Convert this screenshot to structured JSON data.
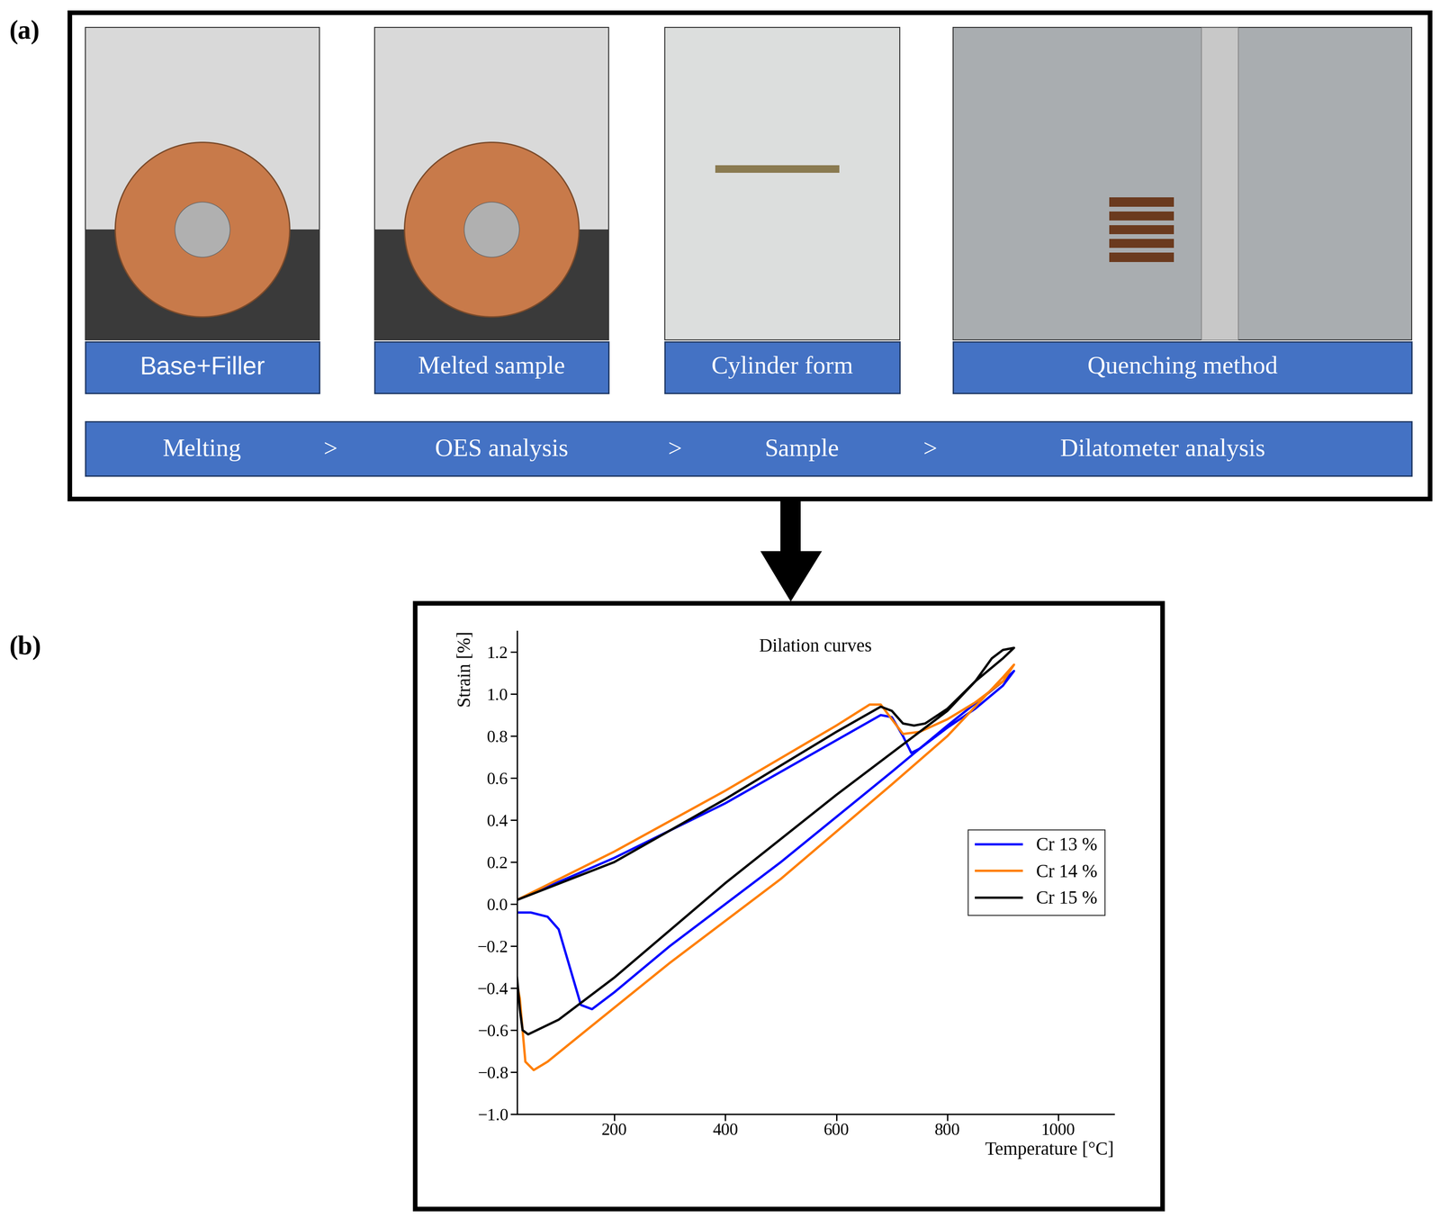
{
  "diagram": {
    "panel_a": {
      "label": "(a)",
      "photos": [
        {
          "caption": "Base+Filler"
        },
        {
          "caption": "Melted sample"
        },
        {
          "caption": "Cylinder form"
        },
        {
          "caption": "Quenching method"
        }
      ],
      "process_steps": [
        "Melting",
        "OES analysis",
        "Sample",
        "Dilatometer analysis"
      ],
      "separator": ">"
    },
    "panel_b": {
      "label": "(b)"
    }
  },
  "chart_data": {
    "type": "line",
    "title": "Dilation curves",
    "x_label": "Temperature [°C]",
    "y_label": "Strain [%]",
    "xlim": [
      25,
      1100
    ],
    "ylim": [
      -1.0,
      1.3
    ],
    "xticks": [
      200,
      400,
      600,
      800,
      1000
    ],
    "yticks": [
      {
        "value": -1.0,
        "label": "−1.0"
      },
      {
        "value": -0.8,
        "label": "−0.8"
      },
      {
        "value": -0.6,
        "label": "−0.6"
      },
      {
        "value": -0.4,
        "label": "−0.4"
      },
      {
        "value": -0.2,
        "label": "−0.2"
      },
      0.0,
      0.2,
      0.4,
      0.6,
      0.8,
      1.0,
      1.2
    ],
    "legend": "center right",
    "series": [
      {
        "name": "Cr 13 %",
        "color": "#0000ff",
        "x": [
          25,
          200,
          400,
          600,
          680,
          700,
          720,
          735,
          750,
          800,
          850,
          900,
          920,
          900,
          800,
          700,
          500,
          300,
          200,
          160,
          140,
          120,
          100,
          80,
          50,
          25
        ],
        "values": [
          0.02,
          0.22,
          0.48,
          0.78,
          0.9,
          0.89,
          0.8,
          0.72,
          0.74,
          0.84,
          0.93,
          1.04,
          1.11,
          1.06,
          0.85,
          0.63,
          0.2,
          -0.2,
          -0.42,
          -0.5,
          -0.48,
          -0.3,
          -0.12,
          -0.06,
          -0.04,
          -0.04
        ]
      },
      {
        "name": "Cr 14 %",
        "color": "#ff7f00",
        "x": [
          25,
          200,
          400,
          600,
          660,
          680,
          700,
          720,
          750,
          800,
          850,
          900,
          920,
          900,
          800,
          700,
          500,
          300,
          150,
          80,
          55,
          40,
          35,
          30,
          25
        ],
        "values": [
          0.02,
          0.25,
          0.54,
          0.85,
          0.95,
          0.95,
          0.88,
          0.81,
          0.82,
          0.88,
          0.96,
          1.06,
          1.14,
          1.08,
          0.8,
          0.57,
          0.12,
          -0.28,
          -0.6,
          -0.75,
          -0.79,
          -0.75,
          -0.6,
          -0.45,
          -0.38
        ]
      },
      {
        "name": "Cr 15 %",
        "color": "#000000",
        "x": [
          25,
          200,
          400,
          600,
          680,
          700,
          720,
          740,
          760,
          800,
          850,
          880,
          900,
          920,
          900,
          850,
          800,
          700,
          600,
          400,
          200,
          100,
          45,
          35,
          30,
          25
        ],
        "values": [
          0.02,
          0.2,
          0.5,
          0.82,
          0.94,
          0.92,
          0.86,
          0.85,
          0.86,
          0.93,
          1.06,
          1.17,
          1.21,
          1.22,
          1.17,
          1.06,
          0.92,
          0.72,
          0.52,
          0.1,
          -0.35,
          -0.55,
          -0.62,
          -0.6,
          -0.5,
          -0.35
        ]
      }
    ]
  }
}
